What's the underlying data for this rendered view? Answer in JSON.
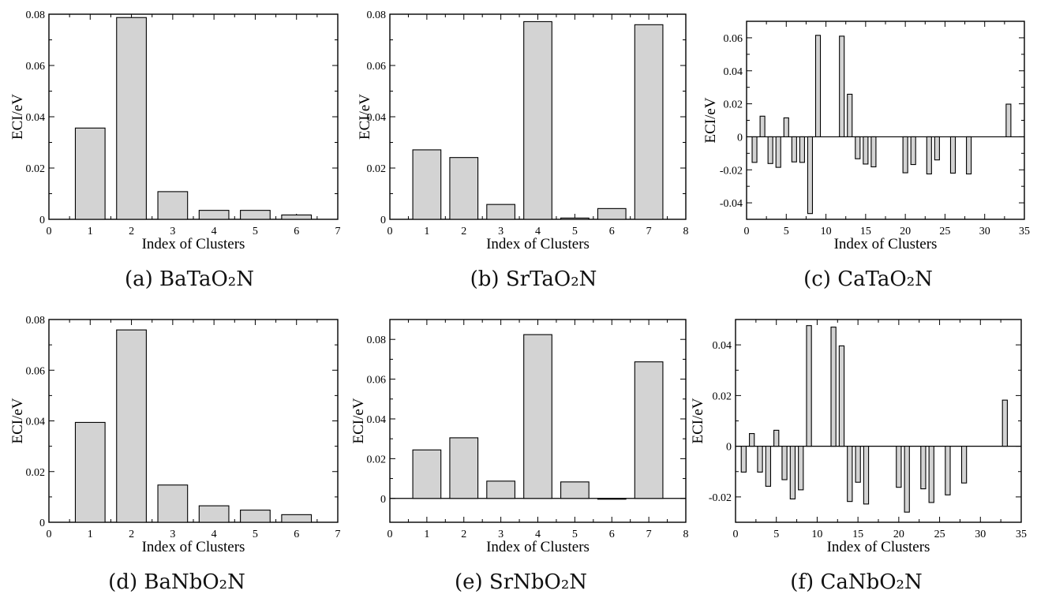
{
  "chart_data": [
    {
      "type": "bar",
      "caption": "(a)  BaTaO₂N",
      "xlabel": "Index of Clusters",
      "ylabel": "ECI/eV",
      "xlim": [
        0,
        7
      ],
      "ylim": [
        0,
        0.08
      ],
      "xticks": [
        "0",
        "1",
        "2",
        "3",
        "4",
        "5",
        "6",
        "7"
      ],
      "yticks": [
        "0",
        "0.02",
        "0.04",
        "0.06",
        "0.08"
      ],
      "x": [
        1,
        2,
        3,
        4,
        5,
        6
      ],
      "values": [
        0.0356,
        0.0787,
        0.0108,
        0.0035,
        0.0035,
        0.0017
      ],
      "zero_line": false
    },
    {
      "type": "bar",
      "caption": "(b)  SrTaO₂N",
      "xlabel": "Index of Clusters",
      "ylabel": "ECI/eV",
      "xlim": [
        0,
        8
      ],
      "ylim": [
        0,
        0.08
      ],
      "xticks": [
        "0",
        "1",
        "2",
        "3",
        "4",
        "5",
        "6",
        "7",
        "8"
      ],
      "yticks": [
        "0",
        "0.02",
        "0.04",
        "0.06",
        "0.08"
      ],
      "x": [
        1,
        2,
        3,
        4,
        5,
        6,
        7
      ],
      "values": [
        0.0271,
        0.0241,
        0.0058,
        0.0771,
        0.0005,
        0.0042,
        0.0759
      ],
      "zero_line": false
    },
    {
      "type": "bar",
      "caption": "(c)  CaTaO₂N",
      "xlabel": "Index of Clusters",
      "ylabel": "ECI/eV",
      "xlim": [
        0,
        35
      ],
      "ylim": [
        -0.05,
        0.07
      ],
      "xticks": [
        "0",
        "5",
        "10",
        "15",
        "20",
        "25",
        "30",
        "35"
      ],
      "yticks": [
        "-0.04",
        "-0.02",
        "0",
        "0.02",
        "0.04",
        "0.06"
      ],
      "x": [
        1,
        2,
        3,
        4,
        5,
        6,
        7,
        8,
        9,
        12,
        13,
        14,
        15,
        16,
        20,
        21,
        23,
        24,
        26,
        28,
        33
      ],
      "values": [
        -0.0155,
        0.0125,
        -0.0162,
        -0.0185,
        0.0115,
        -0.0152,
        -0.0155,
        -0.0465,
        0.0615,
        0.061,
        0.0258,
        -0.0133,
        -0.0165,
        -0.0182,
        -0.0218,
        -0.0168,
        -0.0225,
        -0.014,
        -0.022,
        -0.0225,
        0.0198
      ],
      "zero_line": true
    },
    {
      "type": "bar",
      "caption": "(d)  BaNbO₂N",
      "xlabel": "Index of Clusters",
      "ylabel": "ECI/eV",
      "xlim": [
        0,
        7
      ],
      "ylim": [
        0,
        0.08
      ],
      "xticks": [
        "0",
        "1",
        "2",
        "3",
        "4",
        "5",
        "6",
        "7"
      ],
      "yticks": [
        "0",
        "0.02",
        "0.04",
        "0.06",
        "0.08"
      ],
      "x": [
        1,
        2,
        3,
        4,
        5,
        6
      ],
      "values": [
        0.0394,
        0.0759,
        0.0147,
        0.0065,
        0.0048,
        0.003
      ],
      "zero_line": false
    },
    {
      "type": "bar",
      "caption": "(e)  SrNbO₂N",
      "xlabel": "Index of Clusters",
      "ylabel": "ECI/eV",
      "xlim": [
        0,
        8
      ],
      "ylim": [
        -0.012,
        0.09
      ],
      "xticks": [
        "0",
        "1",
        "2",
        "3",
        "4",
        "5",
        "6",
        "7",
        "8"
      ],
      "yticks": [
        "0",
        "0.02",
        "0.04",
        "0.06",
        "0.08"
      ],
      "x": [
        1,
        2,
        3,
        4,
        5,
        6,
        7
      ],
      "values": [
        0.0244,
        0.0305,
        0.0087,
        0.0824,
        0.0083,
        -0.0002,
        0.0687
      ],
      "zero_line": true
    },
    {
      "type": "bar",
      "caption": "(f)  CaNbO₂N",
      "xlabel": "Index of Clusters",
      "ylabel": "ECI/eV",
      "xlim": [
        0,
        35
      ],
      "ylim": [
        -0.03,
        0.05
      ],
      "xticks": [
        "0",
        "5",
        "10",
        "15",
        "20",
        "25",
        "30",
        "35"
      ],
      "yticks": [
        "-0.02",
        "0",
        "0.02",
        "0.04"
      ],
      "x": [
        1,
        2,
        3,
        4,
        5,
        6,
        7,
        8,
        9,
        12,
        13,
        14,
        15,
        16,
        20,
        21,
        23,
        24,
        26,
        28,
        33
      ],
      "values": [
        -0.0102,
        0.005,
        -0.0102,
        -0.0158,
        0.0063,
        -0.0132,
        -0.0208,
        -0.0172,
        0.0476,
        0.047,
        0.0396,
        -0.0218,
        -0.0142,
        -0.0228,
        -0.0162,
        -0.026,
        -0.0168,
        -0.0222,
        -0.0192,
        -0.0145,
        0.0182
      ],
      "zero_line": true
    }
  ]
}
